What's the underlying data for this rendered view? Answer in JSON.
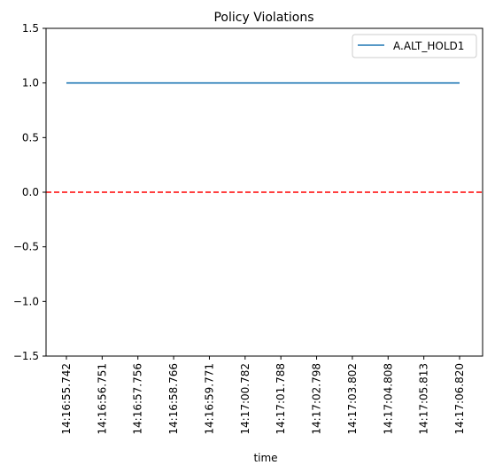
{
  "chart_data": {
    "type": "line",
    "title": "Policy Violations",
    "xlabel": "time",
    "ylabel": "",
    "ylim": [
      -1.5,
      1.5
    ],
    "yticks": [
      -1.5,
      -1.0,
      -0.5,
      0.0,
      0.5,
      1.0,
      1.5
    ],
    "ytick_labels": [
      "−1.5",
      "−1.0",
      "−0.5",
      "0.0",
      "0.5",
      "1.0",
      "1.5"
    ],
    "x": [
      "14:16:55.742",
      "14:16:56.751",
      "14:16:57.756",
      "14:16:58.766",
      "14:16:59.771",
      "14:17:00.782",
      "14:17:01.788",
      "14:17:02.798",
      "14:17:03.802",
      "14:17:04.808",
      "14:17:05.813",
      "14:17:06.820"
    ],
    "series": [
      {
        "name": "A.ALT_HOLD1",
        "color": "#1f77b4",
        "values": [
          1,
          1,
          1,
          1,
          1,
          1,
          1,
          1,
          1,
          1,
          1,
          1
        ]
      }
    ],
    "reference_line": {
      "y": 0.0,
      "color": "#ff0000",
      "style": "dashed"
    },
    "legend": {
      "placement": "top-right"
    },
    "grid": false
  }
}
